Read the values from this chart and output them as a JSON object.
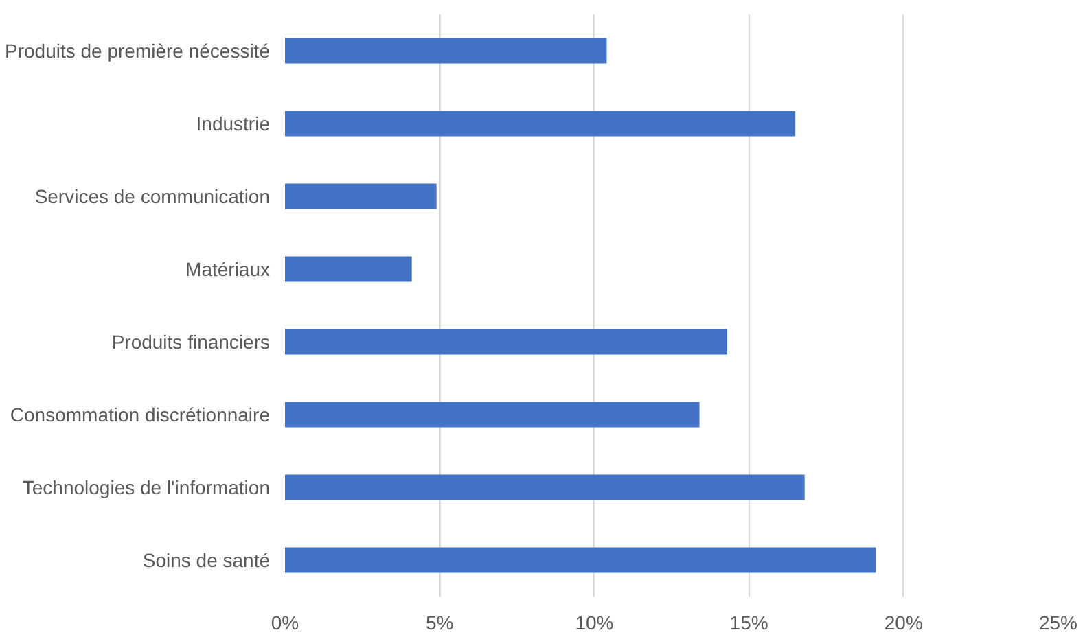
{
  "chart_data": {
    "type": "bar",
    "orientation": "horizontal",
    "categories": [
      "Produits de première nécessité",
      "Industrie",
      "Services de communication",
      "Matériaux",
      "Produits financiers",
      "Consommation discrétionnaire",
      "Technologies de l'information",
      "Soins de santé"
    ],
    "values": [
      10.4,
      16.5,
      4.9,
      4.1,
      14.3,
      13.4,
      16.8,
      19.1
    ],
    "color": "#4472c4",
    "xlim": [
      0,
      25
    ],
    "xticks": [
      {
        "value": 0,
        "label": "0%"
      },
      {
        "value": 5,
        "label": "5%"
      },
      {
        "value": 10,
        "label": "10%"
      },
      {
        "value": 15,
        "label": "15%"
      },
      {
        "value": 20,
        "label": "20%"
      },
      {
        "value": 25,
        "label": "25%"
      }
    ],
    "grid": "x"
  }
}
